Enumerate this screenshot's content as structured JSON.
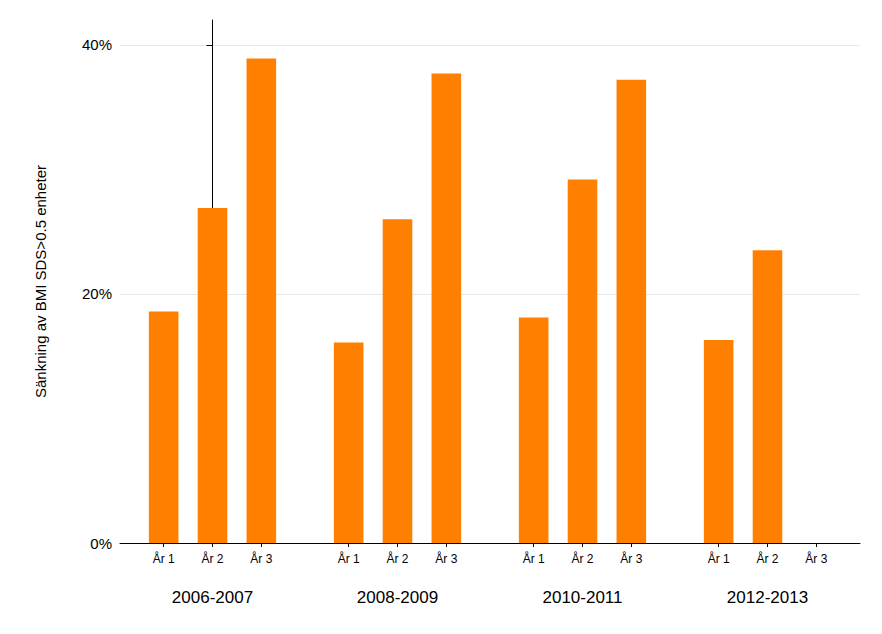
{
  "chart_data": {
    "type": "bar",
    "y_label": "Sänkning av BMI SDS>0.5 enheter",
    "categories": [
      "2006-2007",
      "2008-2009",
      "2010-2011",
      "2012-2013"
    ],
    "series": [
      {
        "name": "År 1",
        "color": "#ff8000",
        "values": [
          18.6,
          16.1,
          18.1,
          16.3
        ]
      },
      {
        "name": "År 2",
        "color": "#ff8000",
        "values": [
          26.9,
          26.0,
          29.2,
          23.5
        ]
      },
      {
        "name": "År 3",
        "color": "#ff8000",
        "values": [
          38.9,
          37.7,
          37.2,
          null
        ]
      }
    ],
    "ylim": [
      0,
      42
    ],
    "yticks": [
      {
        "value": 0,
        "label": "0%"
      },
      {
        "value": 20,
        "label": "20%"
      },
      {
        "value": 40,
        "label": "40%"
      }
    ],
    "grid": true
  }
}
